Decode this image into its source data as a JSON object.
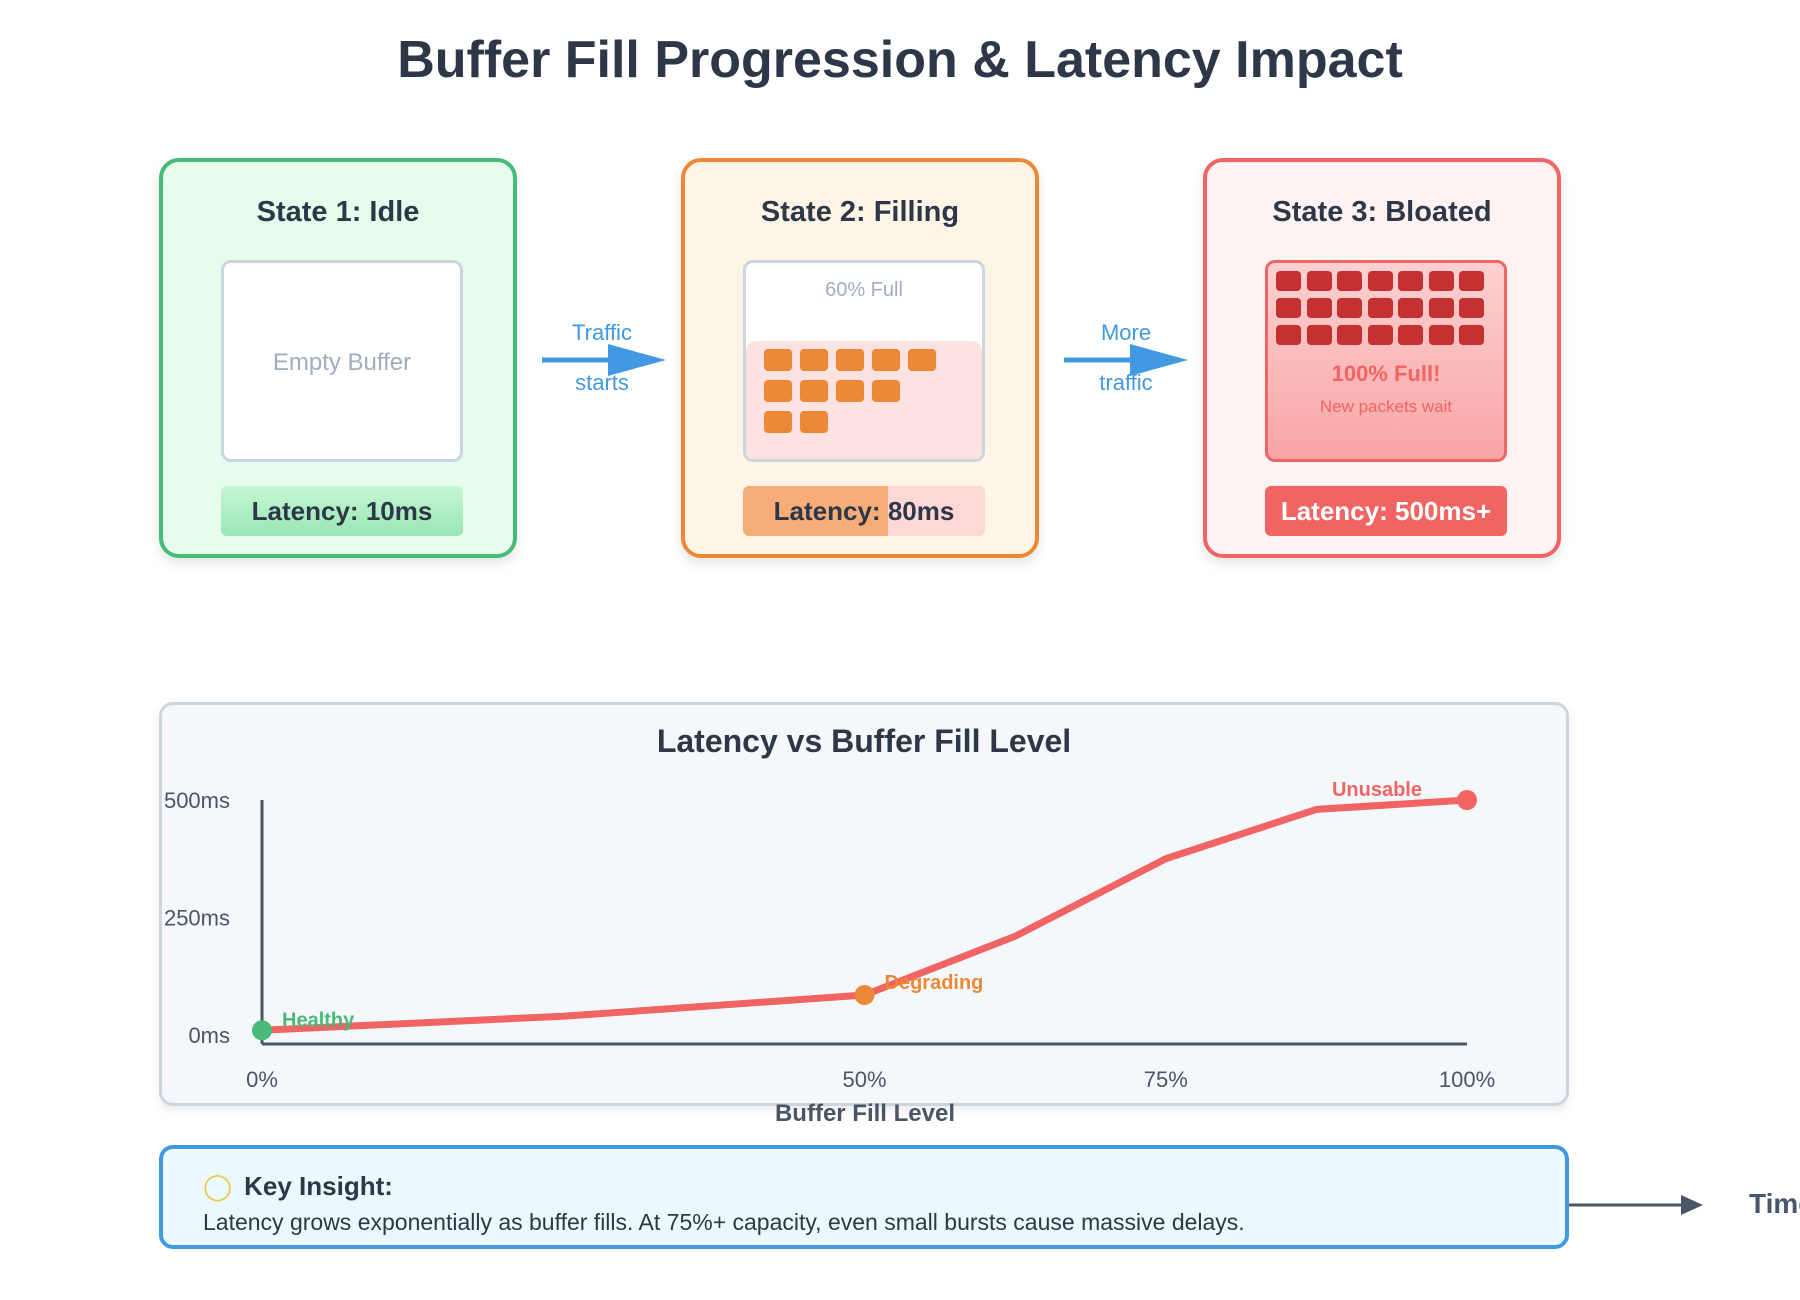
{
  "title": "Buffer Fill Progression & Latency Impact",
  "states": [
    {
      "title": "State 1: Idle",
      "buffer_label": "Empty Buffer",
      "latency": "Latency: 10ms",
      "fill_fraction": 0
    },
    {
      "title": "State 2: Filling",
      "buffer_label": "60% Full",
      "latency": "Latency: 80ms",
      "fill_fraction": 0.6
    },
    {
      "title": "State 3: Bloated",
      "buffer_label": "100% Full!",
      "buffer_sublabel": "New packets wait",
      "latency": "Latency: 500ms+",
      "fill_fraction": 1.0
    }
  ],
  "transitions": [
    {
      "line1": "Traffic",
      "line2": "starts"
    },
    {
      "line1": "More",
      "line2": "traffic"
    }
  ],
  "chart_data": {
    "type": "line",
    "title": "Latency vs Buffer Fill Level",
    "xlabel": "Buffer Fill Level",
    "ylabel": "",
    "x_tick_labels": [
      "0%",
      "50%",
      "75%",
      "100%"
    ],
    "x_ticks": [
      0,
      50,
      75,
      100
    ],
    "y_tick_labels": [
      "0ms",
      "250ms",
      "500ms"
    ],
    "y_ticks": [
      0,
      250,
      500
    ],
    "xlim": [
      0,
      100
    ],
    "ylim": [
      0,
      500
    ],
    "series": [
      {
        "x": [
          0,
          25,
          50,
          62.5,
          75,
          87.5,
          100
        ],
        "y": [
          10,
          40,
          85,
          210,
          375,
          480,
          500
        ],
        "color": "#f06464"
      }
    ],
    "annotations": [
      {
        "label": "Healthy",
        "x": 0,
        "y": 10,
        "color": "#48bb78"
      },
      {
        "label": "Degrading",
        "x": 50,
        "y": 85,
        "color": "#ed8936"
      },
      {
        "label": "Unusable",
        "x": 100,
        "y": 500,
        "color": "#f06464"
      }
    ]
  },
  "insight": {
    "icon": "lightbulb-icon",
    "heading": "Key Insight:",
    "body": "Latency grows exponentially as buffer fills. At 75%+ capacity, even small bursts cause massive delays."
  },
  "time_axis_label": "Time",
  "colors": {
    "green": "#48bb78",
    "orange": "#ed8936",
    "red": "#f06464",
    "blue": "#4299e1",
    "dark_red": "#c53030"
  }
}
